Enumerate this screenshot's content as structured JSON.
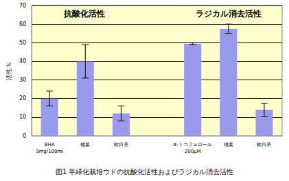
{
  "chart_data": {
    "type": "bar",
    "title": "図1 半緑化栽培ウドの抗酸化活性およびラジカル消去活性",
    "y_label": "活性％",
    "annotations": [
      "抗酸化活性",
      "ラジカル消去活性"
    ],
    "categories": [
      "BHA\n3mg/100ml",
      "穂葉",
      "軟白茎",
      null,
      "α-トコフェロール\n200μM",
      "穂葉",
      "軟白茎"
    ],
    "values": [
      20,
      40,
      12,
      null,
      49.5,
      57.5,
      14
    ],
    "errors": [
      4,
      9,
      4,
      null,
      0.5,
      2.5,
      3.5
    ],
    "color": "#9999ee",
    "ylim": [
      0,
      70
    ],
    "yticks": [
      0,
      10,
      20,
      30,
      40,
      50,
      60,
      70
    ],
    "grid": true
  }
}
